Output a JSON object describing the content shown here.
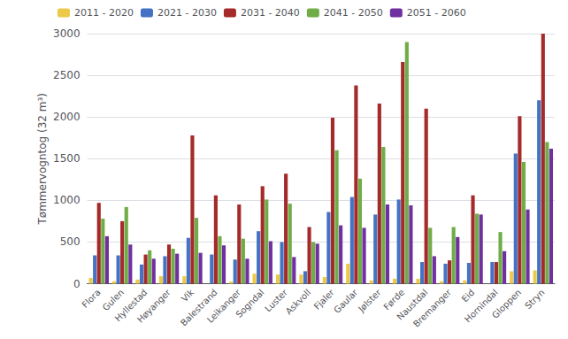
{
  "chart_data": {
    "type": "bar",
    "categories": [
      "Flora",
      "Gulen",
      "Hyllestad",
      "Høyanger",
      "Vik",
      "Balestrand",
      "Leikanger",
      "Sogndal",
      "Luster",
      "Askvoll",
      "Fjaler",
      "Gaular",
      "Jølster",
      "Førde",
      "Naustdal",
      "Bremanger",
      "Eid",
      "Hornindal",
      "Gloppen",
      "Stryn"
    ],
    "series": [
      {
        "name": "2011 - 2020",
        "color": "#EDC948",
        "values": [
          70,
          30,
          50,
          90,
          90,
          0,
          25,
          120,
          110,
          110,
          80,
          240,
          40,
          60,
          60,
          30,
          40,
          0,
          150,
          160
        ]
      },
      {
        "name": "2021 - 2030",
        "color": "#4472C4",
        "values": [
          340,
          340,
          230,
          330,
          550,
          350,
          290,
          630,
          500,
          150,
          860,
          1040,
          830,
          1010,
          260,
          240,
          250,
          260,
          1560,
          2200
        ]
      },
      {
        "name": "2031 - 2040",
        "color": "#A52A2A",
        "values": [
          970,
          750,
          350,
          470,
          1780,
          1060,
          950,
          1170,
          1320,
          680,
          1990,
          2380,
          2160,
          2660,
          2100,
          280,
          1060,
          260,
          2010,
          3000
        ]
      },
      {
        "name": "2041 - 2050",
        "color": "#70AD47",
        "values": [
          780,
          920,
          400,
          420,
          790,
          570,
          540,
          1010,
          960,
          500,
          1600,
          1260,
          1640,
          2900,
          670,
          680,
          840,
          620,
          1460,
          1700
        ]
      },
      {
        "name": "2051 - 2060",
        "color": "#7030A0",
        "values": [
          570,
          470,
          300,
          360,
          370,
          460,
          300,
          510,
          320,
          480,
          700,
          670,
          950,
          940,
          330,
          560,
          830,
          390,
          890,
          1620
        ]
      }
    ],
    "ylabel": "Tømmervogntog (32 m³)",
    "ylim": [
      0,
      3000
    ],
    "yticks": [
      0,
      500,
      1000,
      1500,
      2000,
      2500,
      3000
    ],
    "grid": true,
    "legend": "upper left"
  }
}
